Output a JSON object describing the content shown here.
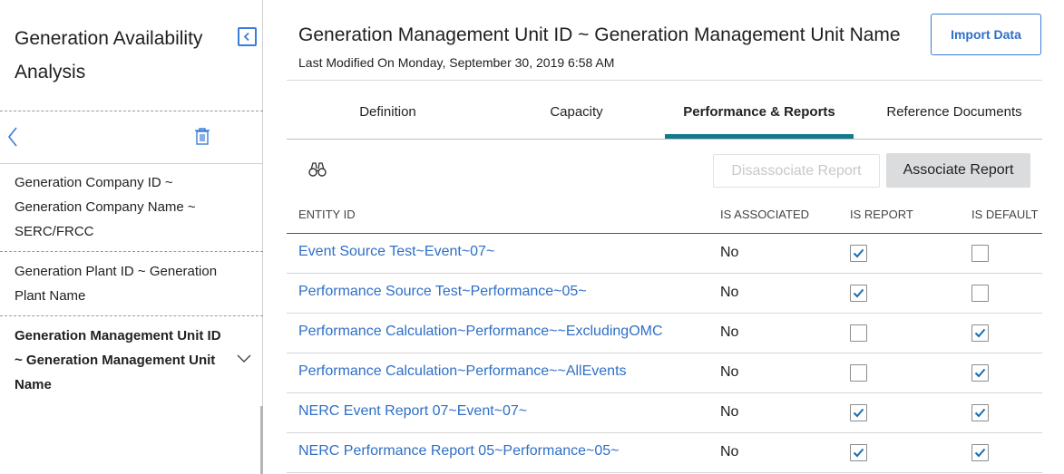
{
  "sidebar": {
    "title": "Generation Availability Analysis",
    "items": [
      {
        "label": "Generation Company ID ~ Generation Company Name ~ SERC/FRCC"
      },
      {
        "label": "Generation Plant ID ~ Generation Plant Name"
      },
      {
        "label": "Generation Management Unit ID ~ Generation Management Unit Name"
      }
    ]
  },
  "header": {
    "title": "Generation Management Unit ID ~ Generation Management Unit Name",
    "subtitle": "Last Modified On Monday, September 30, 2019 6:58 AM",
    "import_label": "Import Data"
  },
  "tabs": [
    {
      "label": "Definition"
    },
    {
      "label": "Capacity"
    },
    {
      "label": "Performance & Reports"
    },
    {
      "label": "Reference Documents"
    }
  ],
  "toolbar": {
    "disassociate_label": "Disassociate Report",
    "associate_label": "Associate Report"
  },
  "grid": {
    "columns": {
      "entity": "ENTITY ID",
      "associated": "IS ASSOCIATED",
      "report": "IS REPORT",
      "default": "IS DEFAULT"
    },
    "rows": [
      {
        "entity": "Event Source Test~Event~07~",
        "associated": "No",
        "report": true,
        "default": false
      },
      {
        "entity": "Performance Source Test~Performance~05~",
        "associated": "No",
        "report": true,
        "default": false
      },
      {
        "entity": "Performance Calculation~Performance~~ExcludingOMC",
        "associated": "No",
        "report": false,
        "default": true
      },
      {
        "entity": "Performance Calculation~Performance~~AllEvents",
        "associated": "No",
        "report": false,
        "default": true
      },
      {
        "entity": "NERC Event Report 07~Event~07~",
        "associated": "No",
        "report": true,
        "default": true
      },
      {
        "entity": "NERC Performance Report 05~Performance~05~",
        "associated": "No",
        "report": true,
        "default": true
      }
    ]
  },
  "colors": {
    "accent": "#2f6fc7",
    "tab_underline": "#117a8b",
    "check": "#1a6cb0"
  },
  "icons": {
    "collapse": "collapse-sidebar-icon",
    "back": "chevron-left-icon",
    "trash": "trash-icon",
    "expand": "chevron-down-icon",
    "search": "binoculars-icon",
    "check": "checkmark-icon"
  }
}
